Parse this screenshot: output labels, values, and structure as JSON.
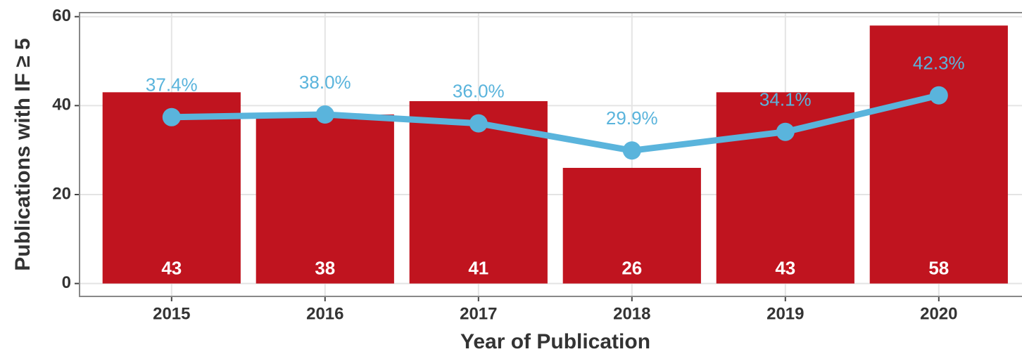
{
  "chart_data": {
    "type": "combo",
    "x_label": "Year of Publication",
    "y_label": "Publications with IF ≥ 5",
    "categories": [
      "2015",
      "2016",
      "2017",
      "2018",
      "2019",
      "2020"
    ],
    "series": [
      {
        "type": "bar",
        "color": "#c0141f",
        "values": [
          43,
          38,
          41,
          26,
          43,
          58
        ]
      },
      {
        "type": "line",
        "color": "#5ab4dc",
        "values": [
          37.4,
          38.0,
          36.0,
          29.9,
          34.1,
          42.3
        ],
        "value_labels": [
          "37.4%",
          "38.0%",
          "36.0%",
          "29.9%",
          "34.1%",
          "42.3%"
        ]
      }
    ],
    "ylim": [
      -2.9,
      60.9
    ],
    "yticks": [
      0,
      20,
      40,
      60
    ],
    "grid": true
  }
}
